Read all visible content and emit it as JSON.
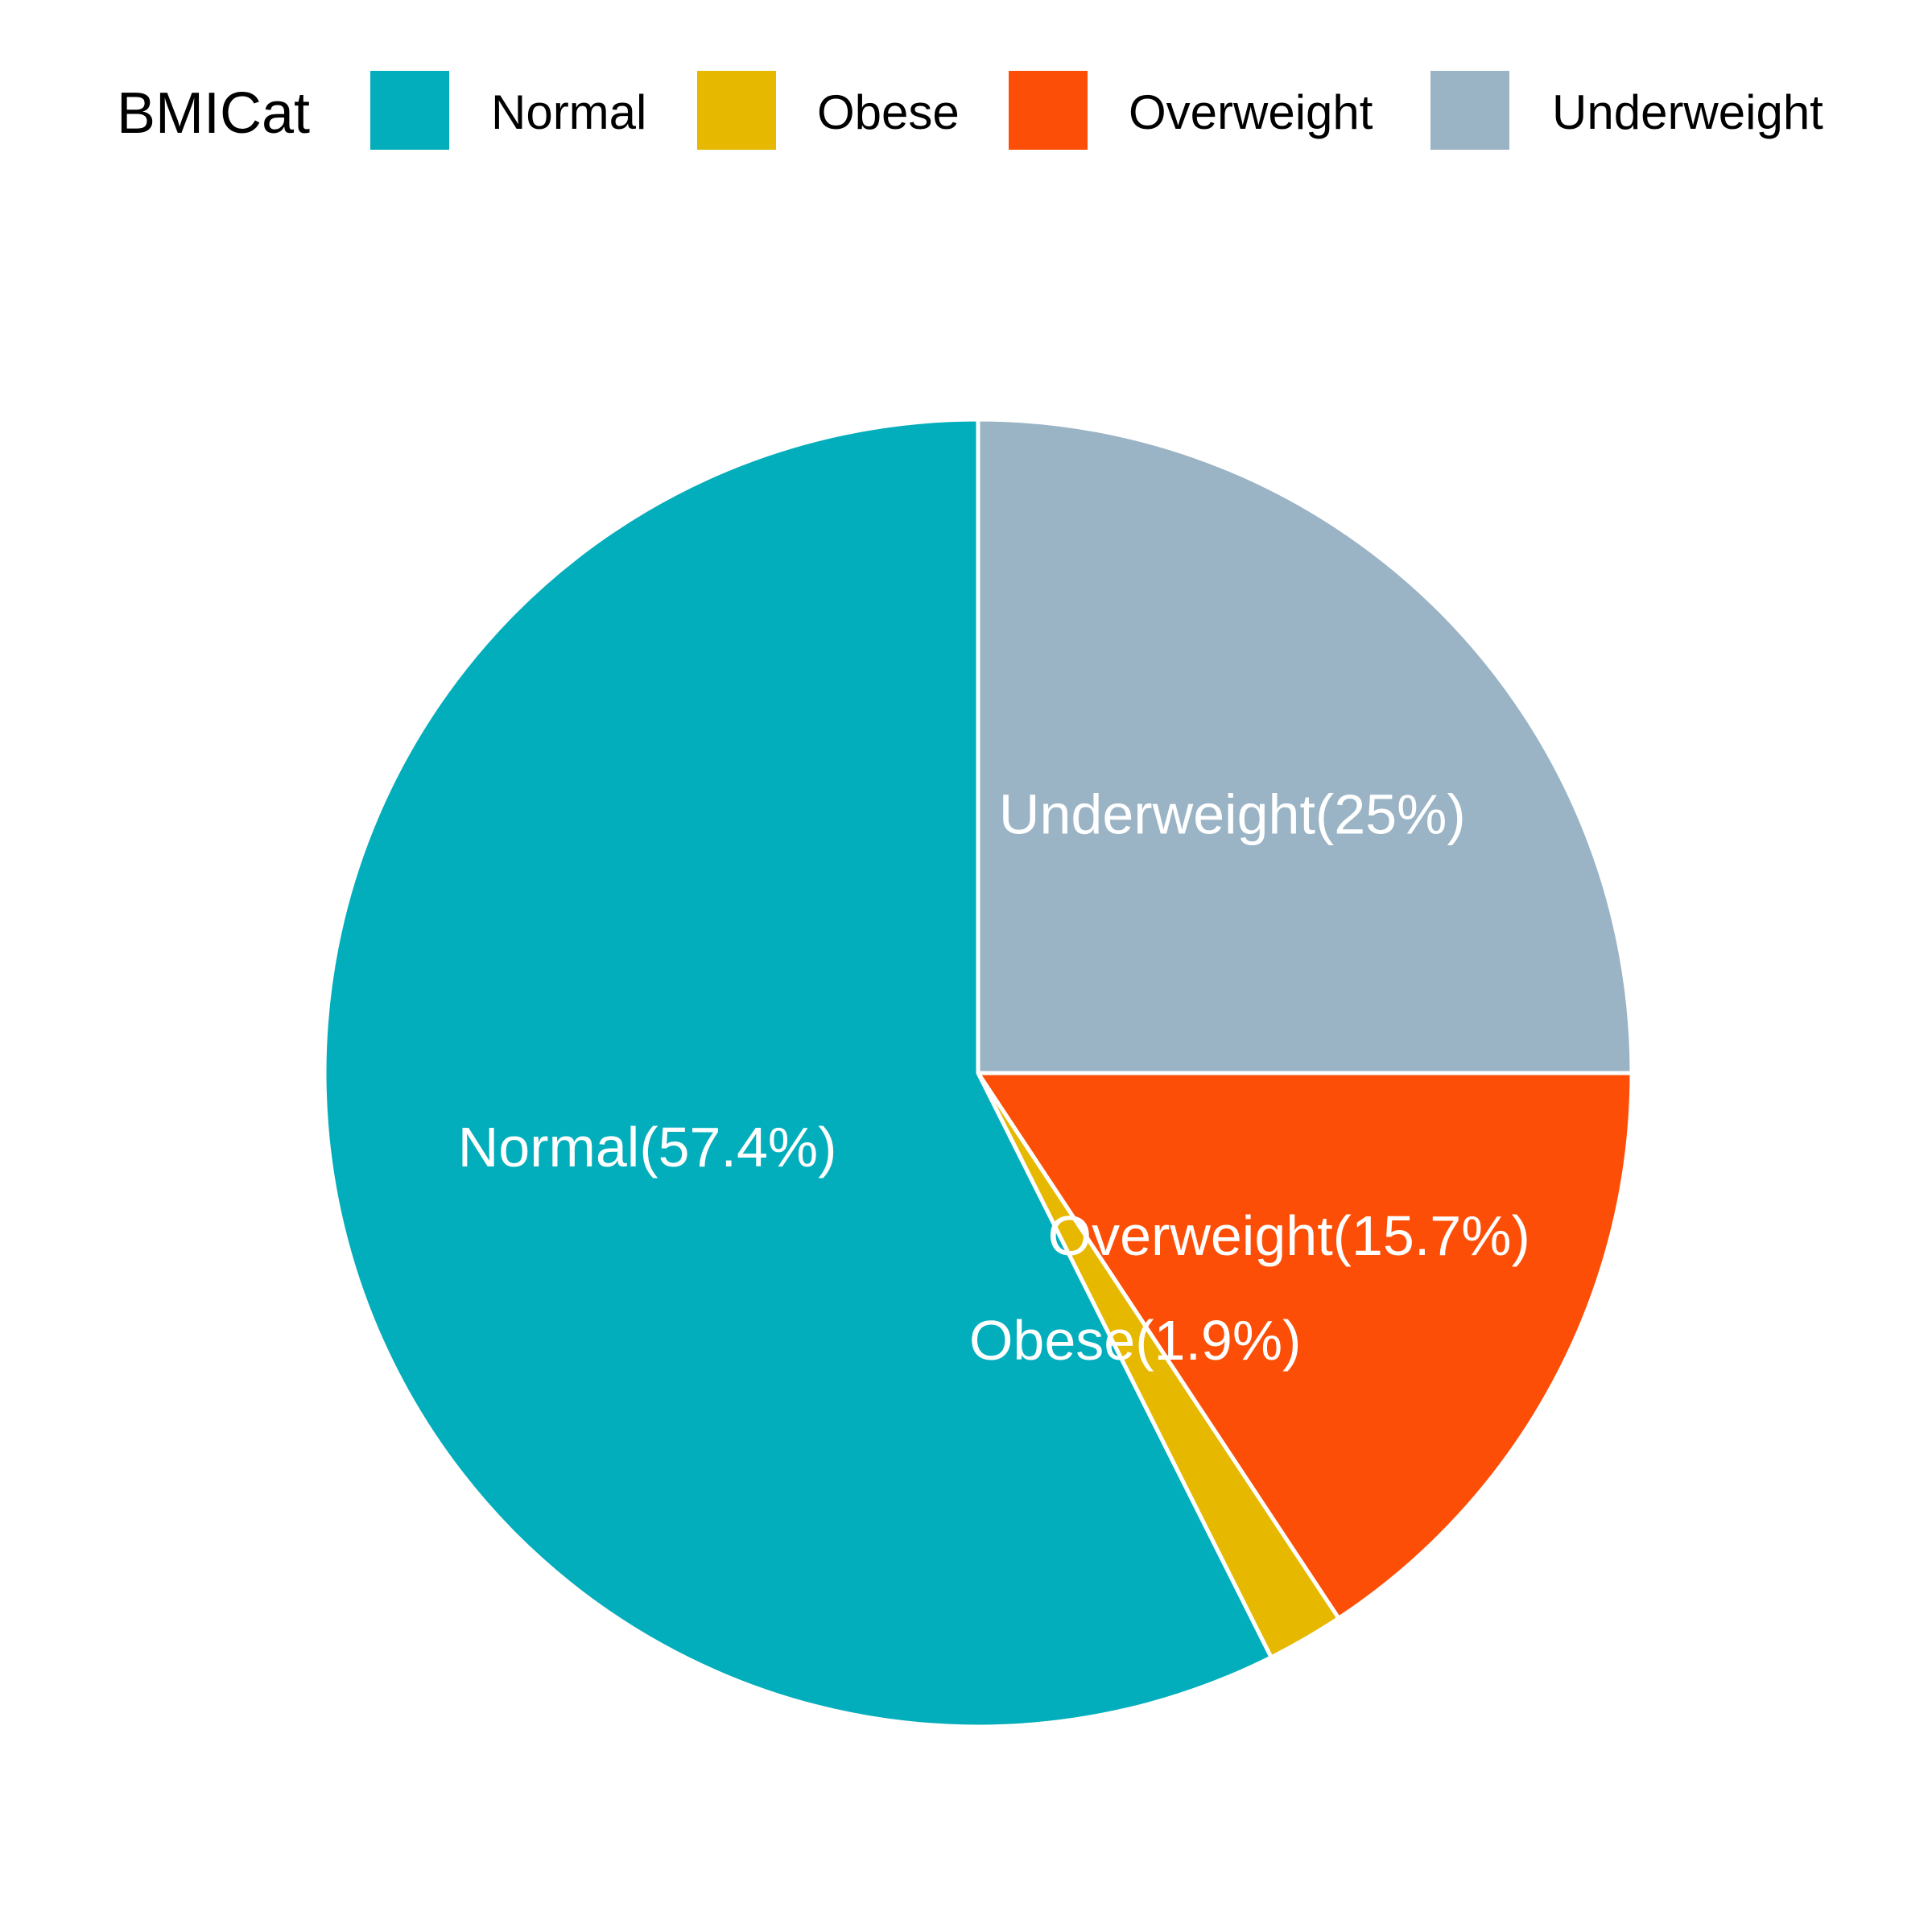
{
  "chart_data": {
    "type": "pie",
    "legend": {
      "title": "BMICat",
      "position": "top"
    },
    "categories": [
      "Normal",
      "Obese",
      "Overweight",
      "Underweight"
    ],
    "values": [
      57.4,
      1.9,
      15.7,
      25.0
    ],
    "colors": [
      "#02AEBB",
      "#E6B800",
      "#FC4E07",
      "#9AB4C6"
    ],
    "slice_labels": [
      "Normal(57.4%)",
      "Obese(1.9%)",
      "Overweight(15.7%)",
      "Underweight(25%)"
    ],
    "start_angle": "12 o'clock",
    "direction": "clockwise",
    "slice_order": [
      "Underweight",
      "Overweight",
      "Obese",
      "Normal"
    ]
  }
}
